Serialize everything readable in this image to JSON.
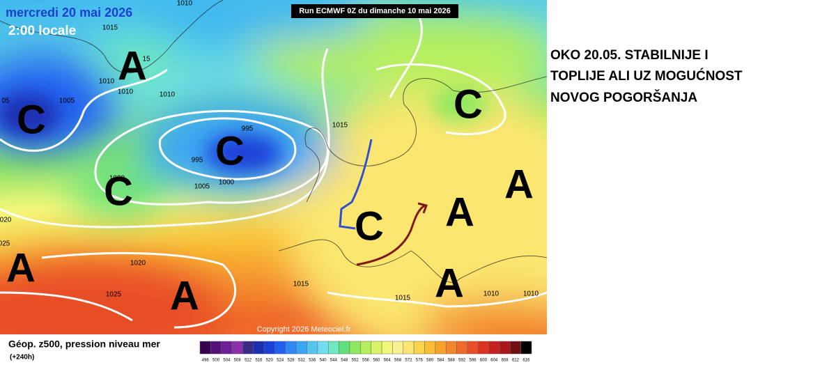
{
  "map": {
    "date": "mercredi 20 mai 2026",
    "time": "2:00 locale",
    "run": "Run ECMWF 0Z du dimanche 10 mai 2026",
    "copyright": "Copyright 2026 Meteociel.fr",
    "systems": [
      "A",
      "C",
      "C",
      "C",
      "A",
      "A",
      "C",
      "A",
      "A",
      "A",
      "C"
    ],
    "isobar_labels": [
      "1010",
      "1015",
      "15",
      "1010",
      "1010",
      "1010",
      "1005",
      "05",
      "995",
      "995",
      "1000",
      "1005",
      "1000",
      "1015",
      "020",
      "025",
      "1020",
      "1025",
      "1015",
      "1015",
      "1010",
      "1010"
    ]
  },
  "legend": {
    "title": "Géop. z500, pression niveau mer",
    "lead": "(+240h)",
    "scale": [
      496,
      500,
      504,
      508,
      512,
      516,
      520,
      524,
      528,
      532,
      536,
      540,
      544,
      548,
      552,
      556,
      560,
      564,
      568,
      572,
      576,
      580,
      584,
      588,
      592,
      596,
      600,
      604,
      608,
      612,
      616
    ],
    "colors": [
      "#3a0050",
      "#55107a",
      "#6e1f95",
      "#8a2fa8",
      "#3a2a8a",
      "#1a2fb0",
      "#1b40d8",
      "#2060f0",
      "#2f86f5",
      "#3aa6f5",
      "#55c6f0",
      "#70def0",
      "#6ee8c0",
      "#5fe07a",
      "#8ee860",
      "#b6ef5e",
      "#d8f56a",
      "#f3f77a",
      "#fbf190",
      "#fbe670",
      "#fbd44a",
      "#f9bd35",
      "#f6a22a",
      "#f3862a",
      "#ef6a2a",
      "#e84e28",
      "#dd3322",
      "#c62020",
      "#a81818",
      "#701010",
      "#000000"
    ]
  },
  "comment": {
    "lines": [
      "OKO 20.05. STABILNIJE I",
      "TOPLIJE ALI UZ MOGUĆNOST",
      "NOVOG POGORŠANJA"
    ]
  }
}
